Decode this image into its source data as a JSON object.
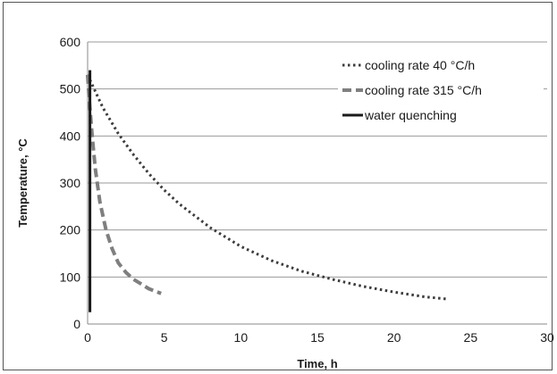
{
  "chart_data": {
    "type": "line",
    "title": "",
    "xlabel": "Time, h",
    "ylabel": "Temperature, °C",
    "xlim": [
      0,
      30
    ],
    "ylim": [
      0,
      600
    ],
    "x_ticks": [
      "0",
      "5",
      "10",
      "15",
      "20",
      "25",
      "30"
    ],
    "y_ticks": [
      "0",
      "100",
      "200",
      "300",
      "400",
      "500",
      "600"
    ],
    "grid": "horizontal",
    "legend_position": "top-right",
    "series": [
      {
        "name": "cooling rate 40 °C/h",
        "style": "dotted",
        "color": "#3c3c3c",
        "x": [
          0,
          1,
          2,
          3,
          4,
          5,
          6,
          8,
          10,
          12,
          14,
          16,
          18,
          20,
          22,
          23.5
        ],
        "y": [
          530,
          460,
          405,
          360,
          320,
          285,
          255,
          205,
          165,
          135,
          112,
          95,
          80,
          68,
          58,
          53
        ]
      },
      {
        "name": "cooling rate 315 °C/h",
        "style": "dashed",
        "color": "#7f7f7f",
        "x": [
          0,
          0.1,
          0.3,
          0.5,
          0.8,
          1.2,
          1.6,
          2.0,
          2.5,
          3.0,
          3.5,
          4.0,
          4.8
        ],
        "y": [
          530,
          480,
          400,
          330,
          260,
          200,
          160,
          130,
          110,
          95,
          85,
          75,
          65
        ]
      },
      {
        "name": "water quenching",
        "style": "solid",
        "color": "#1a1a1a",
        "x": [
          0.15,
          0.15
        ],
        "y": [
          540,
          25
        ]
      }
    ]
  }
}
